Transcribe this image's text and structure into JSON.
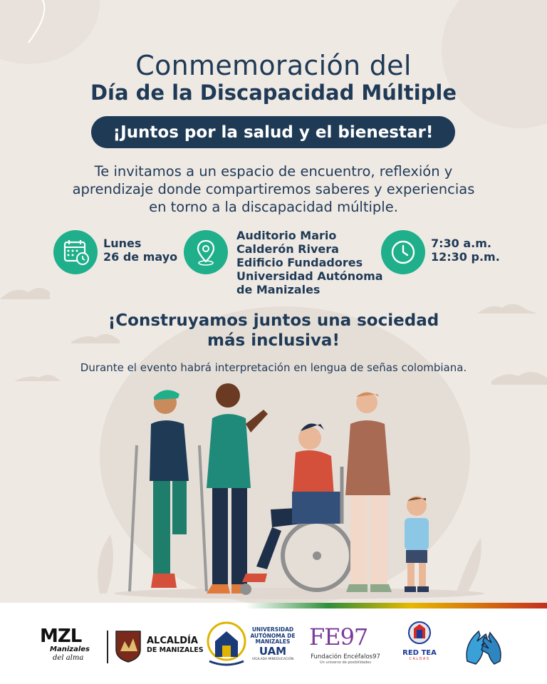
{
  "header": {
    "title_line1": "Conmemoración del",
    "title_line2": "Día de la Discapacidad Múltiple",
    "tagline": "¡Juntos por la salud y el bienestar!"
  },
  "intro": {
    "line1": "Te invitamos a un espacio de encuentro, reflexión y",
    "line2": "aprendizaje donde compartiremos saberes y experiencias",
    "line3": "en torno a la discapacidad múltiple."
  },
  "details": {
    "date": {
      "icon": "calendar-icon",
      "line1": "Lunes",
      "line2": "26 de mayo"
    },
    "place": {
      "icon": "location-pin-icon",
      "line1": "Auditorio Mario",
      "line2": "Calderón Rivera",
      "line3": "Edificio Fundadores",
      "line4": "Universidad Autónoma",
      "line5": "de Manizales"
    },
    "time": {
      "icon": "clock-icon",
      "line1": "7:30 a.m.",
      "line2": "12:30 p.m."
    }
  },
  "slogan": {
    "line1": "¡Construyamos juntos una sociedad",
    "line2": "más inclusiva!"
  },
  "notice": "Durante el evento habrá interpretación en lengua de señas colombiana.",
  "logos": {
    "mzl": {
      "name": "MZL",
      "sub1": "Manizales",
      "sub2": "del alma"
    },
    "alcaldia": {
      "line1": "ALCALDÍA",
      "line2": "DE MANIZALES"
    },
    "uam": {
      "line1": "UNIVERSIDAD",
      "line2": "AUTÓNOMA DE",
      "line3": "MANIZALES",
      "abbr": "UAM",
      "small": "VIGILADA MINEDUCACIÓN"
    },
    "fe97": {
      "mark": "FE97",
      "name": "Fundación Encéfalos97",
      "tagline": "Un universo de posibilidades"
    },
    "redtea": {
      "name": "RED TEA",
      "region": "CALDAS"
    }
  },
  "colors": {
    "background": "#efe9e4",
    "navy": "#1f3a56",
    "green": "#1faf8a",
    "white": "#ffffff"
  }
}
